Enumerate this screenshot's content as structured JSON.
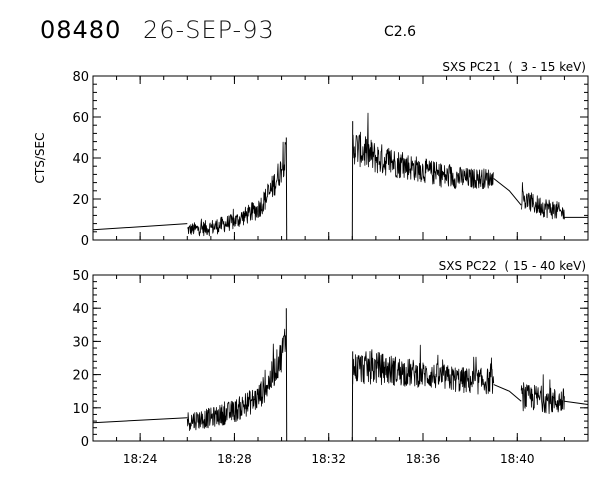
{
  "header": {
    "event_number": "08480",
    "date": "26-SEP-93",
    "flare_class": "C2.6"
  },
  "chart_data": [
    {
      "type": "line",
      "title": "SXS PC21  (  3 - 15 keV)",
      "ylabel": "CTS/SEC",
      "xlabel": "",
      "ylim": [
        0,
        80
      ],
      "yticks": [
        0,
        20,
        40,
        60,
        80
      ],
      "xlim": [
        "18:22:00",
        "18:43:00"
      ],
      "xticks": [
        "18:24",
        "18:28",
        "18:32",
        "18:36",
        "18:40"
      ],
      "grid": false,
      "series": [
        {
          "segments": [
            {
              "kind": "interp",
              "x": [
                "18:22:00",
                "18:26:00"
              ],
              "y": [
                5,
                8
              ]
            },
            {
              "kind": "noisy",
              "x": [
                "18:26:00",
                "18:27:00",
                "18:28:00",
                "18:29:00",
                "18:29:30",
                "18:30:00",
                "18:30:12"
              ],
              "y": [
                5,
                6,
                9,
                15,
                23,
                35,
                42
              ],
              "noise": [
                3,
                4,
                4,
                5,
                6,
                7,
                8
              ]
            },
            {
              "kind": "spike",
              "x": [
                "18:30:12",
                "18:30:13"
              ],
              "y": [
                50,
                0
              ]
            },
            {
              "kind": "spike",
              "x": [
                "18:33:00",
                "18:33:01"
              ],
              "y": [
                0,
                58
              ]
            },
            {
              "kind": "noisy",
              "x": [
                "18:33:01",
                "18:34:00",
                "18:35:00",
                "18:36:00",
                "18:37:00",
                "18:38:00",
                "18:39:00"
              ],
              "y": [
                46,
                40,
                37,
                34,
                31,
                30,
                30
              ],
              "noise": [
                9,
                8,
                7,
                6,
                6,
                5,
                5
              ]
            },
            {
              "kind": "interp",
              "x": [
                "18:39:00",
                "18:39:40",
                "18:40:10"
              ],
              "y": [
                30,
                24,
                17
              ]
            },
            {
              "kind": "noisy",
              "x": [
                "18:40:10",
                "18:40:50",
                "18:41:30",
                "18:42:00"
              ],
              "y": [
                20,
                17,
                15,
                13
              ],
              "noise": [
                5,
                5,
                5,
                4
              ]
            },
            {
              "kind": "interp",
              "x": [
                "18:42:00",
                "18:43:00"
              ],
              "y": [
                11,
                11
              ]
            }
          ]
        }
      ]
    },
    {
      "type": "line",
      "title": "SXS PC22  ( 15 - 40 keV)",
      "ylabel": "",
      "xlabel": "",
      "ylim": [
        0,
        50
      ],
      "yticks": [
        0,
        10,
        20,
        30,
        40,
        50
      ],
      "xlim": [
        "18:22:00",
        "18:43:00"
      ],
      "xticks": [
        "18:24",
        "18:28",
        "18:32",
        "18:36",
        "18:40"
      ],
      "grid": false,
      "series": [
        {
          "segments": [
            {
              "kind": "interp",
              "x": [
                "18:22:00",
                "18:26:00"
              ],
              "y": [
                5.5,
                7
              ]
            },
            {
              "kind": "noisy",
              "x": [
                "18:26:00",
                "18:27:00",
                "18:28:00",
                "18:29:00",
                "18:29:30",
                "18:30:00",
                "18:30:12"
              ],
              "y": [
                6,
                7,
                9,
                13,
                18,
                26,
                32
              ],
              "noise": [
                3,
                3,
                3.5,
                4,
                4.5,
                5,
                6
              ]
            },
            {
              "kind": "spike",
              "x": [
                "18:30:12",
                "18:30:13"
              ],
              "y": [
                40,
                0
              ]
            },
            {
              "kind": "spike",
              "x": [
                "18:33:00",
                "18:33:01"
              ],
              "y": [
                0,
                27
              ]
            },
            {
              "kind": "noisy",
              "x": [
                "18:33:01",
                "18:34:00",
                "18:35:00",
                "18:36:00",
                "18:37:00",
                "18:38:00",
                "18:39:00"
              ],
              "y": [
                22,
                22,
                21,
                20,
                19,
                18,
                18
              ],
              "noise": [
                5,
                5,
                4.5,
                4,
                4,
                4,
                4
              ]
            },
            {
              "kind": "interp",
              "x": [
                "18:39:00",
                "18:39:40",
                "18:40:10"
              ],
              "y": [
                17,
                15,
                12
              ]
            },
            {
              "kind": "noisy",
              "x": [
                "18:40:10",
                "18:40:50",
                "18:41:30",
                "18:42:00"
              ],
              "y": [
                13,
                13,
                12,
                12
              ],
              "noise": [
                4,
                4,
                4,
                4
              ]
            },
            {
              "kind": "interp",
              "x": [
                "18:42:00",
                "18:43:00"
              ],
              "y": [
                12,
                11
              ]
            }
          ]
        }
      ]
    }
  ]
}
